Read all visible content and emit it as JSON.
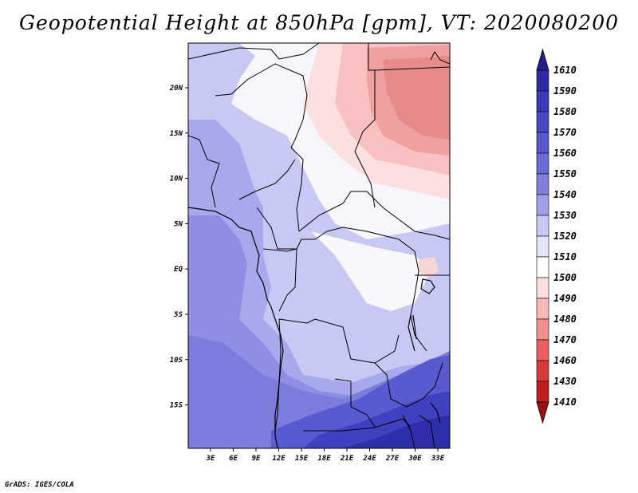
{
  "title": "Geopotential Height at 850hPa [gpm], VT: 2020080200",
  "credit": "GrADS: IGES/COLA",
  "map": {
    "lon_ticks": [
      "3E",
      "6E",
      "9E",
      "12E",
      "15E",
      "18E",
      "21E",
      "24E",
      "27E",
      "30E",
      "33E"
    ],
    "lat_ticks": [
      "20N",
      "15N",
      "10N",
      "5N",
      "EQ",
      "5S",
      "10S",
      "15S"
    ]
  },
  "colorbar": {
    "labels": [
      "1610",
      "1590",
      "1580",
      "1570",
      "1560",
      "1550",
      "1540",
      "1530",
      "1520",
      "1510",
      "1500",
      "1490",
      "1480",
      "1470",
      "1460",
      "1430",
      "1410"
    ],
    "colors": [
      "#231f8c",
      "#2d2ba4",
      "#3a3ab8",
      "#4848c4",
      "#5858cc",
      "#6a6ad4",
      "#8080dc",
      "#a0a0e8",
      "#c8c8f4",
      "#e4e4f8",
      "#ffffff",
      "#fcdcdc",
      "#f8b8b8",
      "#f29090",
      "#e86060",
      "#d83a3a",
      "#c01e1e",
      "#9c1010"
    ]
  }
}
